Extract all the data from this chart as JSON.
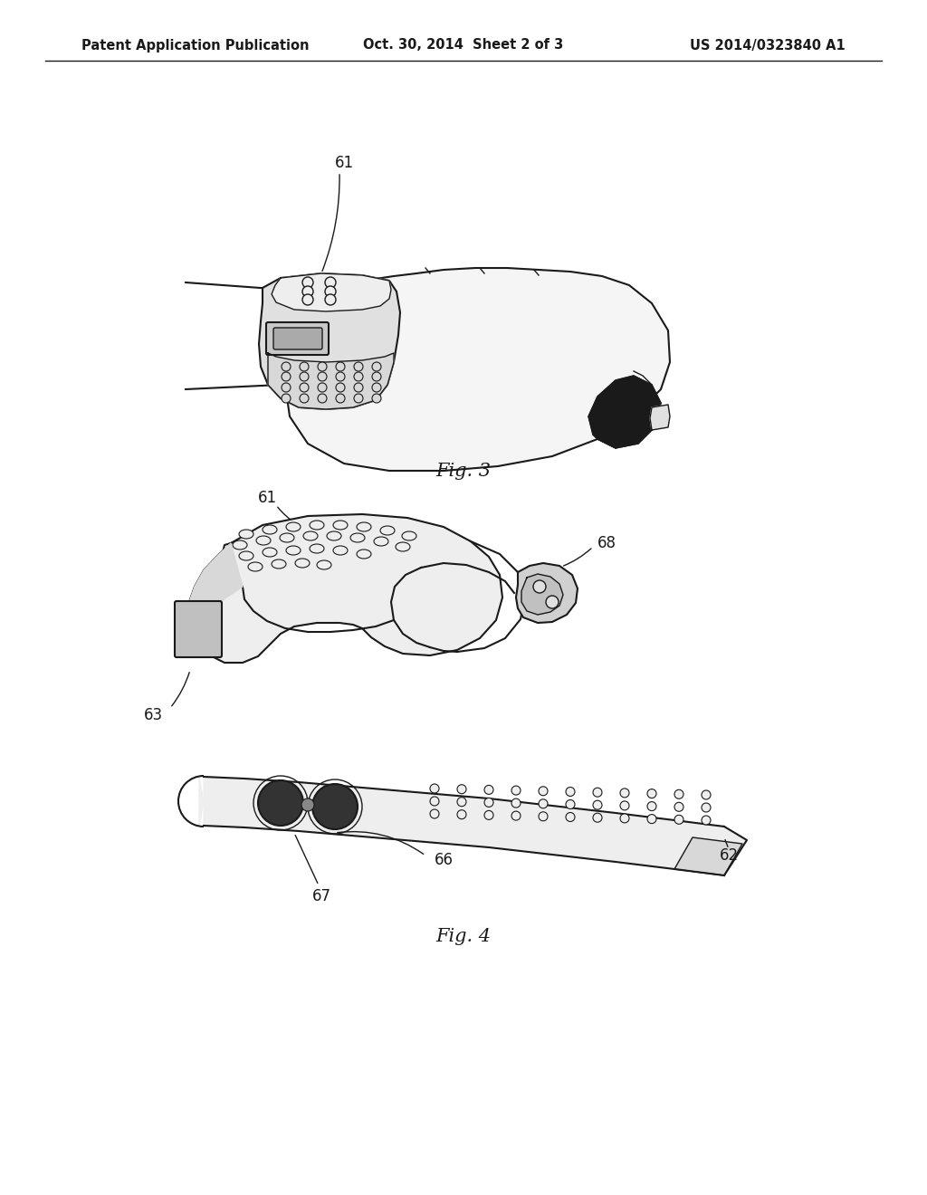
{
  "bg_color": "#ffffff",
  "header_left": "Patent Application Publication",
  "header_center": "Oct. 30, 2014  Sheet 2 of 3",
  "header_right": "US 2014/0323840 A1",
  "header_fontsize": 11,
  "fig3_label": "Fig. 3",
  "fig4_label": "Fig. 4",
  "line_color": "#1a1a1a",
  "dark_fill": "#1a1a1a",
  "light_fill": "#f5f5f5",
  "mid_fill": "#d0d0d0"
}
